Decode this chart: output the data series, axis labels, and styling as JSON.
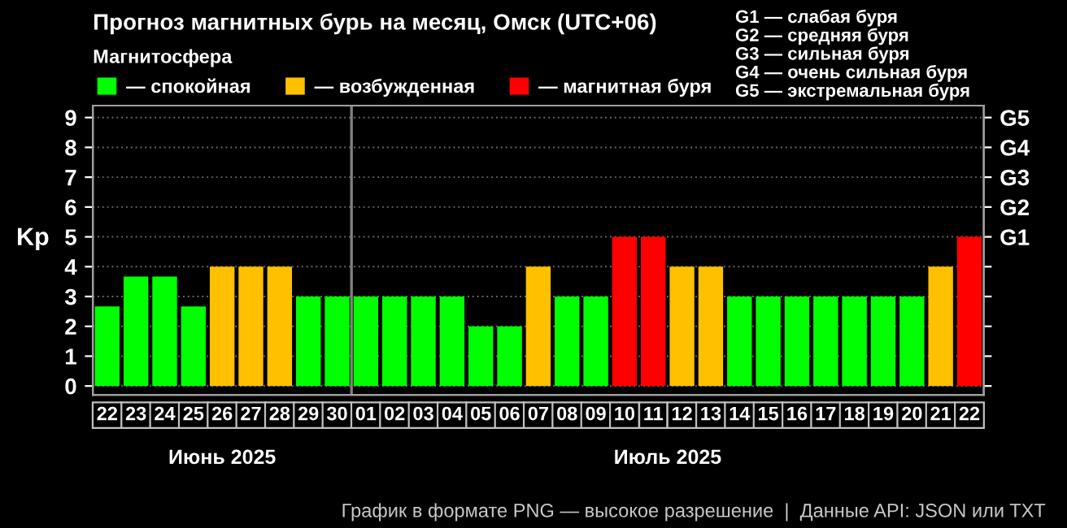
{
  "chart_data": {
    "type": "bar",
    "title": "Прогноз магнитных бурь на месяц, Омск (UTC+06)",
    "ylabel": "Kp",
    "legend_title": "Магнитосфера",
    "categories": [
      "22",
      "23",
      "24",
      "25",
      "26",
      "27",
      "28",
      "29",
      "30",
      "01",
      "02",
      "03",
      "04",
      "05",
      "06",
      "07",
      "08",
      "09",
      "10",
      "11",
      "12",
      "13",
      "14",
      "15",
      "16",
      "17",
      "18",
      "19",
      "20",
      "21",
      "22"
    ],
    "series": [
      {
        "name": "— спокойная",
        "color": "#00ff00",
        "values": [
          2.67,
          3.67,
          3.67,
          2.67,
          null,
          null,
          null,
          3,
          3,
          3,
          3,
          3,
          3,
          2,
          2,
          null,
          3,
          3,
          null,
          null,
          null,
          null,
          3,
          3,
          3,
          3,
          3,
          3,
          3,
          null,
          null
        ]
      },
      {
        "name": "— возбужденная",
        "color": "#ffc000",
        "values": [
          null,
          null,
          null,
          null,
          4,
          4,
          4,
          null,
          null,
          null,
          null,
          null,
          null,
          null,
          null,
          4,
          null,
          null,
          null,
          null,
          4,
          4,
          null,
          null,
          null,
          null,
          null,
          null,
          null,
          4,
          null
        ]
      },
      {
        "name": "— магнитная буря",
        "color": "#ff0000",
        "values": [
          null,
          null,
          null,
          null,
          null,
          null,
          null,
          null,
          null,
          null,
          null,
          null,
          null,
          null,
          null,
          null,
          null,
          null,
          5,
          5,
          null,
          null,
          null,
          null,
          null,
          null,
          null,
          null,
          null,
          null,
          5
        ]
      }
    ],
    "ylim": [
      -0.3,
      9.4
    ],
    "yticks": [
      0,
      1,
      2,
      3,
      4,
      5,
      6,
      7,
      8,
      9
    ],
    "y2_categories": [
      "G5",
      "G4",
      "G3",
      "G2",
      "G1",
      null,
      null,
      null,
      null,
      null
    ],
    "ref_lines": [
      {
        "axis": "x",
        "value": "01",
        "color": "#808080"
      }
    ],
    "grid": "y",
    "legend": "top left",
    "annotations": [
      "Июнь 2025",
      "Июль 2025",
      "G1 — слабая буря",
      "G2 — средняя буря",
      "G3 — сильная буря",
      "G4 — очень сильная буря",
      "G5 — экстремальная буря",
      "График в формате PNG — высокое разрешение  |  Данные API: JSON или TXT"
    ]
  }
}
